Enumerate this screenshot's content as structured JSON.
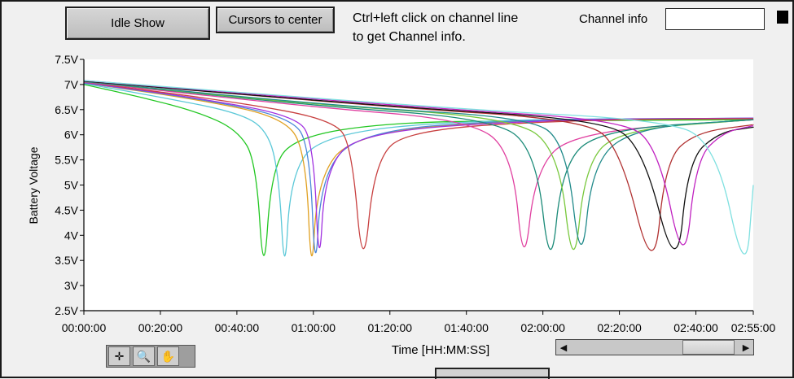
{
  "toolbar": {
    "idle_show_label": "Idle Show",
    "cursors_center_label": "Cursors to center"
  },
  "hint": {
    "line1": "Ctrl+left click on channel line",
    "line2": "to get Channel info."
  },
  "channel_info": {
    "label": "Channel info",
    "value": ""
  },
  "tools": [
    "cursor-tool-icon",
    "zoom-tool-icon",
    "pan-hand-icon"
  ],
  "chart_data": {
    "type": "line",
    "xlabel": "Time [HH:MM:SS]",
    "ylabel": "Battery Voltage",
    "xlim": [
      0,
      175
    ],
    "ylim": [
      2.5,
      7.5
    ],
    "x_ticks": [
      {
        "v": 0,
        "label": "00:00:00"
      },
      {
        "v": 20,
        "label": "00:20:00"
      },
      {
        "v": 40,
        "label": "00:40:00"
      },
      {
        "v": 60,
        "label": "01:00:00"
      },
      {
        "v": 80,
        "label": "01:20:00"
      },
      {
        "v": 100,
        "label": "01:40:00"
      },
      {
        "v": 120,
        "label": "02:00:00"
      },
      {
        "v": 140,
        "label": "02:20:00"
      },
      {
        "v": 160,
        "label": "02:40:00"
      },
      {
        "v": 175,
        "label": "02:55:00"
      }
    ],
    "y_ticks": [
      {
        "v": 7.5,
        "label": "7.5V"
      },
      {
        "v": 7,
        "label": "7V"
      },
      {
        "v": 6.5,
        "label": "6.5V"
      },
      {
        "v": 6,
        "label": "6V"
      },
      {
        "v": 5.5,
        "label": "5.5V"
      },
      {
        "v": 5,
        "label": "5V"
      },
      {
        "v": 4.5,
        "label": "4.5V"
      },
      {
        "v": 4,
        "label": "4V"
      },
      {
        "v": 3.5,
        "label": "3.5V"
      },
      {
        "v": 3,
        "label": "3V"
      },
      {
        "v": 2.5,
        "label": "2.5V"
      }
    ],
    "grid": false,
    "series": [
      {
        "color": "#22c722",
        "values": [
          [
            0,
            7.0
          ],
          [
            15,
            6.75
          ],
          [
            30,
            6.45
          ],
          [
            40,
            6.1
          ],
          [
            45,
            5.5
          ],
          [
            47,
            3.0
          ],
          [
            49,
            5.3
          ],
          [
            55,
            5.95
          ],
          [
            80,
            6.25
          ],
          [
            120,
            6.28
          ],
          [
            175,
            6.3
          ]
        ]
      },
      {
        "color": "#5bc8d8",
        "values": [
          [
            0,
            7.02
          ],
          [
            20,
            6.75
          ],
          [
            40,
            6.45
          ],
          [
            48,
            6.1
          ],
          [
            51,
            5.2
          ],
          [
            52.5,
            3.05
          ],
          [
            54,
            5.2
          ],
          [
            62,
            6.0
          ],
          [
            100,
            6.3
          ],
          [
            175,
            6.33
          ]
        ]
      },
      {
        "color": "#e0a020",
        "values": [
          [
            0,
            7.03
          ],
          [
            30,
            6.7
          ],
          [
            52,
            6.35
          ],
          [
            58,
            5.7
          ],
          [
            59.5,
            3.0
          ],
          [
            61,
            5.1
          ],
          [
            70,
            6.0
          ],
          [
            110,
            6.3
          ],
          [
            175,
            6.32
          ]
        ]
      },
      {
        "color": "#4a86d8",
        "values": [
          [
            0,
            7.03
          ],
          [
            30,
            6.72
          ],
          [
            54,
            6.35
          ],
          [
            59,
            5.8
          ],
          [
            60.5,
            3.05
          ],
          [
            62,
            5.2
          ],
          [
            72,
            6.05
          ],
          [
            110,
            6.3
          ],
          [
            175,
            6.33
          ]
        ]
      },
      {
        "color": "#a030e0",
        "values": [
          [
            0,
            7.04
          ],
          [
            30,
            6.73
          ],
          [
            55,
            6.38
          ],
          [
            60,
            5.9
          ],
          [
            61.5,
            3.15
          ],
          [
            63,
            5.3
          ],
          [
            72,
            6.05
          ],
          [
            120,
            6.3
          ],
          [
            175,
            6.33
          ]
        ]
      },
      {
        "color": "#c84040",
        "values": [
          [
            0,
            7.05
          ],
          [
            40,
            6.65
          ],
          [
            65,
            6.3
          ],
          [
            70,
            5.8
          ],
          [
            73,
            3.1
          ],
          [
            76,
            5.5
          ],
          [
            85,
            6.1
          ],
          [
            130,
            6.3
          ],
          [
            175,
            6.32
          ]
        ]
      },
      {
        "color": "#e040a0",
        "values": [
          [
            0,
            7.05
          ],
          [
            60,
            6.55
          ],
          [
            100,
            6.3
          ],
          [
            112,
            5.7
          ],
          [
            115,
            3.2
          ],
          [
            118,
            5.3
          ],
          [
            128,
            6.05
          ],
          [
            175,
            6.3
          ]
        ]
      },
      {
        "color": "#1a8a78",
        "values": [
          [
            0,
            7.06
          ],
          [
            60,
            6.58
          ],
          [
            105,
            6.33
          ],
          [
            118,
            5.8
          ],
          [
            122,
            3.1
          ],
          [
            125,
            5.4
          ],
          [
            135,
            6.1
          ],
          [
            175,
            6.3
          ]
        ]
      },
      {
        "color": "#78c83c",
        "values": [
          [
            0,
            7.06
          ],
          [
            60,
            6.6
          ],
          [
            110,
            6.35
          ],
          [
            124,
            5.8
          ],
          [
            128,
            3.1
          ],
          [
            131,
            5.4
          ],
          [
            140,
            6.1
          ],
          [
            175,
            6.3
          ]
        ]
      },
      {
        "color": "#208a8a",
        "values": [
          [
            0,
            7.06
          ],
          [
            70,
            6.55
          ],
          [
            115,
            6.35
          ],
          [
            126,
            5.9
          ],
          [
            130,
            3.2
          ],
          [
            133,
            5.5
          ],
          [
            145,
            6.15
          ],
          [
            175,
            6.3
          ]
        ]
      },
      {
        "color": "#b03030",
        "values": [
          [
            0,
            7.07
          ],
          [
            80,
            6.55
          ],
          [
            130,
            6.3
          ],
          [
            140,
            5.8
          ],
          [
            149,
            3.05
          ],
          [
            152,
            5.5
          ],
          [
            160,
            6.05
          ],
          [
            175,
            6.2
          ]
        ]
      },
      {
        "color": "#101010",
        "values": [
          [
            0,
            7.07
          ],
          [
            80,
            6.56
          ],
          [
            135,
            6.3
          ],
          [
            146,
            5.8
          ],
          [
            155,
            3.1
          ],
          [
            158,
            5.5
          ],
          [
            166,
            6.05
          ],
          [
            175,
            6.15
          ]
        ]
      },
      {
        "color": "#c020c0",
        "values": [
          [
            0,
            7.08
          ],
          [
            90,
            6.53
          ],
          [
            140,
            6.3
          ],
          [
            150,
            5.8
          ],
          [
            157,
            3.2
          ],
          [
            160,
            5.5
          ],
          [
            167,
            6.05
          ],
          [
            175,
            6.18
          ]
        ]
      },
      {
        "color": "#7fe0e0",
        "values": [
          [
            0,
            7.08
          ],
          [
            100,
            6.5
          ],
          [
            150,
            6.3
          ],
          [
            165,
            5.9
          ],
          [
            173,
            3.05
          ],
          [
            175,
            5.0
          ]
        ]
      }
    ]
  }
}
